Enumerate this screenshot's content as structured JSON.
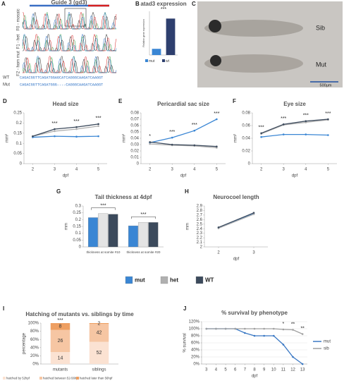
{
  "panel_a": {
    "panel": "A",
    "title": "Guide 3 (gd3)",
    "rows": [
      "F0 - mosaic",
      "F1 - het",
      "F2 - hom mut"
    ],
    "sequences": [
      {
        "name": "WT",
        "seq": "CAGACGGTTCAGATGGAGCATCAGGGCAAGATCAAGGT"
      },
      {
        "name": "Mut",
        "seq": "CAGACGGTTCAGATGGG----CAGGGCAAGATCAAGGT"
      }
    ]
  },
  "panel_c": {
    "panel": "C",
    "labels": [
      "Sib",
      "Mut"
    ],
    "scale": "500μm"
  },
  "chart_data": [
    {
      "panel": "B",
      "type": "bar",
      "title": "atad3 expression",
      "ylabel": "Relative gene expression",
      "categories": [
        "mut",
        "wt"
      ],
      "values": [
        0.17,
        1.0
      ],
      "colors": [
        "#3a86d4",
        "#2e3f6e"
      ],
      "ylim": [
        0,
        1.2
      ],
      "annotation": "***"
    },
    {
      "panel": "D",
      "type": "line",
      "title": "Head size",
      "ylabel": "mm²",
      "xlabel": "dpf",
      "x": [
        2,
        3,
        4,
        5
      ],
      "xlim": [
        1.6,
        5.4
      ],
      "xticks": [
        2,
        3,
        4,
        5
      ],
      "ylim": [
        0,
        0.25
      ],
      "yticks": [
        0,
        0.05,
        0.1,
        0.15,
        0.2,
        0.25
      ],
      "series": [
        {
          "name": "mut",
          "color": "#3a86d4",
          "values": [
            0.13,
            0.135,
            0.133,
            0.135
          ]
        },
        {
          "name": "het",
          "color": "#b0b0b0",
          "values": [
            0.135,
            0.16,
            0.17,
            0.185
          ]
        },
        {
          "name": "WT",
          "color": "#3c4a5c",
          "values": [
            0.135,
            0.17,
            0.18,
            0.195
          ]
        }
      ],
      "annotations": [
        {
          "text": "***",
          "x": 3
        },
        {
          "text": "***",
          "x": 4
        },
        {
          "text": "***",
          "x": 5
        }
      ]
    },
    {
      "panel": "E",
      "type": "line",
      "title": "Pericardial sac size",
      "ylabel": "mm²",
      "xlabel": "dpf",
      "x": [
        2,
        3,
        4,
        5
      ],
      "xlim": [
        1.6,
        5.4
      ],
      "xticks": [
        2,
        3,
        4,
        5
      ],
      "ylim": [
        0,
        0.08
      ],
      "yticks": [
        0,
        0.01,
        0.02,
        0.03,
        0.04,
        0.05,
        0.06,
        0.07,
        0.08
      ],
      "series": [
        {
          "name": "mut",
          "color": "#3a86d4",
          "values": [
            0.033,
            0.041,
            0.052,
            0.07
          ]
        },
        {
          "name": "het",
          "color": "#b0b0b0",
          "values": [
            0.031,
            0.029,
            0.028,
            0.025
          ]
        },
        {
          "name": "WT",
          "color": "#3c4a5c",
          "values": [
            0.034,
            0.03,
            0.029,
            0.027
          ]
        }
      ],
      "annotations": [
        {
          "text": "*",
          "x": 2
        },
        {
          "text": "***",
          "x": 3
        },
        {
          "text": "***",
          "x": 4
        },
        {
          "text": "***",
          "x": 5
        }
      ]
    },
    {
      "panel": "F",
      "type": "line",
      "title": "Eye size",
      "ylabel": "mm²",
      "xlabel": "dpf",
      "x": [
        2,
        3,
        4,
        5
      ],
      "xlim": [
        1.6,
        5.4
      ],
      "xticks": [
        2,
        3,
        4,
        5
      ],
      "ylim": [
        0,
        0.08
      ],
      "yticks": [
        0,
        0.02,
        0.04,
        0.06,
        0.08
      ],
      "series": [
        {
          "name": "mut",
          "color": "#3a86d4",
          "values": [
            0.042,
            0.046,
            0.046,
            0.045
          ]
        },
        {
          "name": "het",
          "color": "#b0b0b0",
          "values": [
            0.047,
            0.061,
            0.065,
            0.069
          ]
        },
        {
          "name": "WT",
          "color": "#3c4a5c",
          "values": [
            0.048,
            0.062,
            0.067,
            0.07
          ]
        }
      ],
      "annotations": [
        {
          "text": "***",
          "x": 2
        },
        {
          "text": "***",
          "x": 3
        },
        {
          "text": "***",
          "x": 4
        },
        {
          "text": "***",
          "x": 5
        }
      ]
    },
    {
      "panel": "G",
      "type": "bar",
      "title": "Tail thickness at 4dpf",
      "ylabel": "mm",
      "categories": [
        "thickness at somite #10",
        "thickness at somite #20"
      ],
      "ylim": [
        0,
        0.3
      ],
      "yticks": [
        0,
        0.05,
        0.1,
        0.15,
        0.2,
        0.25,
        0.3
      ],
      "series": [
        {
          "name": "mut",
          "color": "#3a86d4",
          "values": [
            0.215,
            0.155
          ]
        },
        {
          "name": "het",
          "color": "#e4e4e4",
          "values": [
            0.245,
            0.18
          ]
        },
        {
          "name": "WT",
          "color": "#3c4a5c",
          "values": [
            0.24,
            0.18
          ]
        }
      ],
      "annotations": [
        "***",
        "***"
      ]
    },
    {
      "panel": "H",
      "type": "line",
      "title": "Neurocoel length",
      "ylabel": "mm",
      "xlabel": "dpf",
      "x": [
        2,
        3
      ],
      "xlim": [
        1.6,
        3.4
      ],
      "xticks": [
        2,
        3
      ],
      "ylim": [
        2,
        2.9
      ],
      "yticks": [
        2,
        2.1,
        2.2,
        2.3,
        2.4,
        2.5,
        2.6,
        2.7,
        2.8,
        2.9
      ],
      "series": [
        {
          "name": "mut",
          "color": "#3a86d4",
          "values": [
            2.42,
            2.73
          ]
        },
        {
          "name": "het",
          "color": "#b0b0b0",
          "values": [
            2.41,
            2.72
          ]
        },
        {
          "name": "WT",
          "color": "#3c4a5c",
          "values": [
            2.43,
            2.75
          ]
        }
      ]
    },
    {
      "panel": "I",
      "type": "bar",
      "stacked": "percent",
      "title": "Hatching of mutants vs. siblings by time",
      "ylabel": "percentage",
      "categories": [
        "mutants",
        "siblings"
      ],
      "ylim": [
        0,
        100
      ],
      "yticks": [
        {
          "value": 0,
          "label": "0%"
        },
        {
          "value": 20,
          "label": "20%"
        },
        {
          "value": 40,
          "label": "40%"
        },
        {
          "value": 60,
          "label": "60%"
        },
        {
          "value": 80,
          "label": "80%"
        },
        {
          "value": 100,
          "label": "100%"
        }
      ],
      "series": [
        {
          "name": "hatched by 52hpf",
          "color": "#fbe2d2",
          "values": [
            14,
            52
          ]
        },
        {
          "name": "hatched between 52-56hpf",
          "color": "#f6c6a3",
          "values": [
            26,
            42
          ]
        },
        {
          "name": "hatched later than 56hpf",
          "color": "#ee9f62",
          "values": [
            8,
            2
          ]
        }
      ],
      "annotations": [
        "***"
      ]
    },
    {
      "panel": "J",
      "type": "line",
      "title": "% survival by phenotype",
      "ylabel": "% survival",
      "xlabel": "dpf",
      "x": [
        3,
        4,
        5,
        6,
        7,
        8,
        9,
        10,
        11,
        12,
        13
      ],
      "xlim": [
        2.5,
        13.5
      ],
      "xticks": [
        3,
        4,
        5,
        6,
        7,
        8,
        9,
        10,
        11,
        12,
        13
      ],
      "ylim": [
        0,
        120
      ],
      "yticks": [
        {
          "value": 0,
          "label": "0%"
        },
        {
          "value": 20,
          "label": "20%"
        },
        {
          "value": 40,
          "label": "40%"
        },
        {
          "value": 60,
          "label": "60%"
        },
        {
          "value": 80,
          "label": "80%"
        },
        {
          "value": 100,
          "label": "100%"
        },
        {
          "value": 120,
          "label": "120%"
        }
      ],
      "grid": true,
      "series": [
        {
          "name": "mut",
          "color": "#3a78c4",
          "values": [
            100,
            100,
            100,
            100,
            88,
            80,
            80,
            80,
            55,
            20,
            0
          ]
        },
        {
          "name": "sib",
          "color": "#a0a0a0",
          "values": [
            100,
            100,
            100,
            100,
            100,
            100,
            100,
            100,
            98,
            97,
            85
          ]
        }
      ],
      "annotations": [
        {
          "text": "*",
          "x": 11
        },
        {
          "text": "**",
          "x": 12
        },
        {
          "text": "**",
          "x": 13
        }
      ]
    }
  ]
}
